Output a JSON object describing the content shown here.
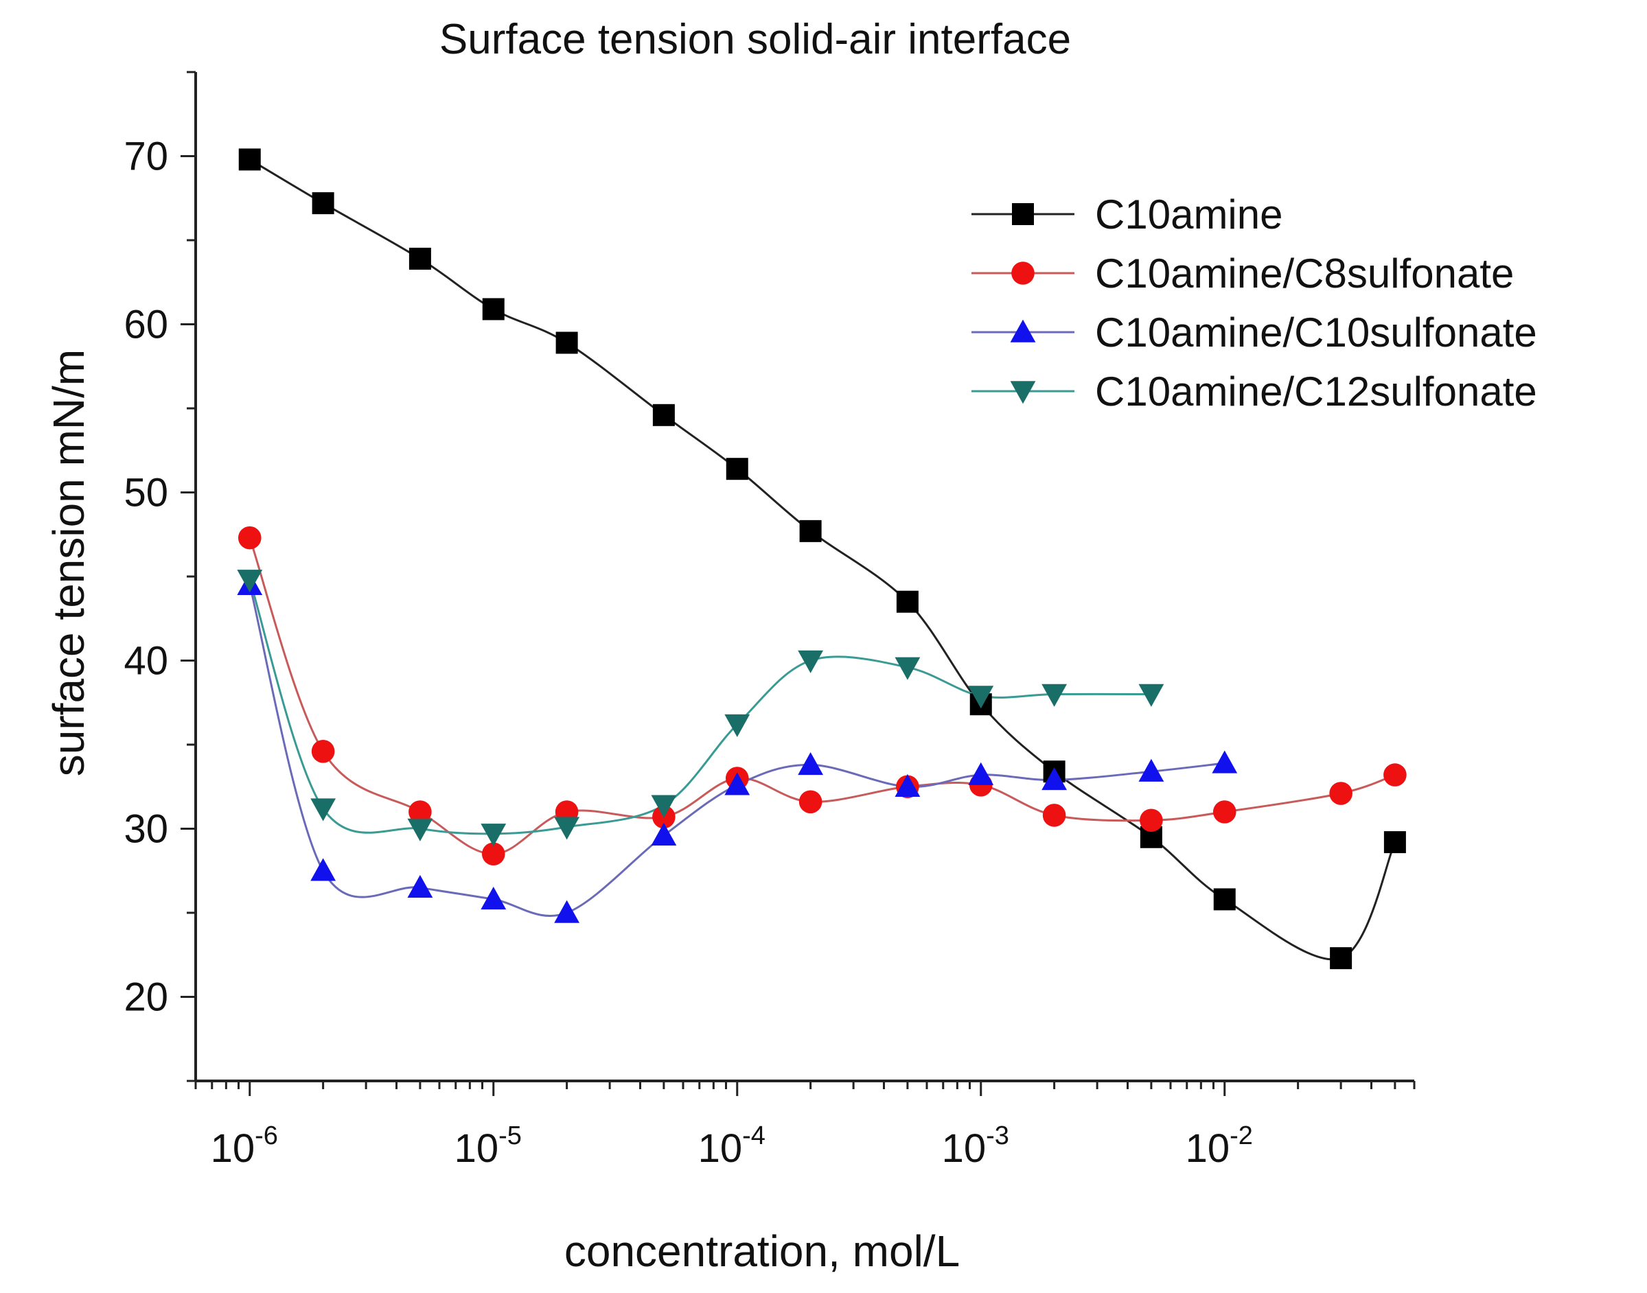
{
  "chart_data": {
    "type": "line",
    "title": "Surface tension solid-air interface",
    "xlabel": "concentration, mol/L",
    "ylabel": "surface tension mN/m",
    "xscale": "log",
    "xlim": [
      6e-07,
      0.06
    ],
    "ylim": [
      15,
      75
    ],
    "yticks": [
      20,
      30,
      40,
      50,
      60,
      70
    ],
    "xticks": [
      {
        "value": 1e-06,
        "base": "10",
        "exp": "-6"
      },
      {
        "value": 1e-05,
        "base": "10",
        "exp": "-5"
      },
      {
        "value": 0.0001,
        "base": "10",
        "exp": "-4"
      },
      {
        "value": 0.001,
        "base": "10",
        "exp": "-3"
      },
      {
        "value": 0.01,
        "base": "10",
        "exp": "-2"
      }
    ],
    "legend_position": "top-right",
    "series": [
      {
        "name": "C10amine",
        "color": "#222222",
        "marker": "square",
        "markerColor": "#000000",
        "x": [
          1e-06,
          2e-06,
          5e-06,
          1e-05,
          2e-05,
          5e-05,
          0.0001,
          0.0002,
          0.0005,
          0.001,
          0.002,
          0.005,
          0.01,
          0.03,
          0.05
        ],
        "y": [
          69.8,
          67.2,
          63.9,
          60.9,
          58.9,
          54.6,
          51.4,
          47.7,
          43.5,
          37.4,
          33.4,
          29.5,
          25.8,
          22.3,
          29.2
        ]
      },
      {
        "name": "C10amine/C8sulfonate",
        "color": "#c85a5a",
        "marker": "circle",
        "markerColor": "#ee1111",
        "x": [
          1e-06,
          2e-06,
          5e-06,
          1e-05,
          2e-05,
          5e-05,
          0.0001,
          0.0002,
          0.0005,
          0.001,
          0.002,
          0.005,
          0.01,
          0.03,
          0.05
        ],
        "y": [
          47.3,
          34.6,
          31.0,
          28.5,
          31.0,
          30.7,
          33.0,
          31.6,
          32.5,
          32.6,
          30.8,
          30.5,
          31.0,
          32.1,
          33.2
        ]
      },
      {
        "name": "C10amine/C10sulfonate",
        "color": "#6a6ab8",
        "marker": "triangle-up",
        "markerColor": "#1111ee",
        "x": [
          1e-06,
          2e-06,
          5e-06,
          1e-05,
          2e-05,
          5e-05,
          0.0001,
          0.0002,
          0.0005,
          0.001,
          0.002,
          0.005,
          0.01
        ],
        "y": [
          44.5,
          27.5,
          26.5,
          25.8,
          25.0,
          29.6,
          32.6,
          33.8,
          32.5,
          33.2,
          32.9,
          33.4,
          33.9
        ]
      },
      {
        "name": "C10amine/C12sulfonate",
        "color": "#3a9a94",
        "marker": "triangle-down",
        "markerColor": "#1a6e68",
        "x": [
          1e-06,
          2e-06,
          5e-06,
          1e-05,
          2e-05,
          5e-05,
          0.0001,
          0.0002,
          0.0005,
          0.001,
          0.002,
          0.005
        ],
        "y": [
          44.8,
          31.2,
          30.0,
          29.7,
          30.1,
          31.4,
          36.2,
          40.0,
          39.6,
          37.9,
          38.0,
          38.0
        ]
      }
    ]
  }
}
